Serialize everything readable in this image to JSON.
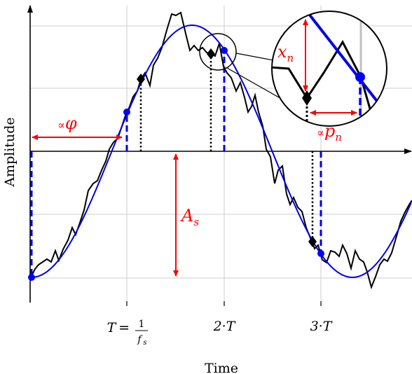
{
  "figure": {
    "axes": {
      "ylabel": "Amplitude",
      "xlabel": "Time",
      "tick_T_prefix": "T =",
      "tick_T_num": "1",
      "tick_T_den": "f",
      "tick_T_den_sub": "s",
      "tick_2T": "2·T",
      "tick_3T": "3·T"
    },
    "annotations": {
      "phase_prefix": "∝",
      "phase_symbol": "φ",
      "amplitude_symbol": "A",
      "amplitude_sub": "s",
      "noise_symbol": "x",
      "noise_sub": "n",
      "period_noise_prefix": "∝",
      "period_noise_symbol": "p",
      "period_noise_sub": "n"
    },
    "colors": {
      "ideal_signal": "#0000e6",
      "sampled_marker": "#0000ff",
      "noisy_signal": "#000000",
      "annotation": "#ff0000",
      "grid": "#cccccc"
    }
  }
}
